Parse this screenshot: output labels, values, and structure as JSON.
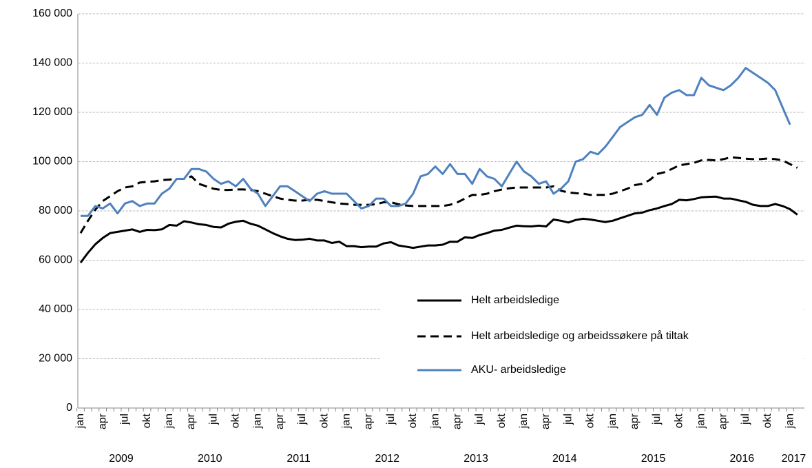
{
  "chart_data": {
    "type": "line",
    "categories": [
      "jan",
      null,
      null,
      "apr",
      null,
      null,
      "jul",
      null,
      null,
      "okt",
      null,
      null,
      "jan",
      null,
      null,
      "apr",
      null,
      null,
      "jul",
      null,
      null,
      "okt",
      null,
      null,
      "jan",
      null,
      null,
      "apr",
      null,
      null,
      "jul",
      null,
      null,
      "okt",
      null,
      null,
      "jan",
      null,
      null,
      "apr",
      null,
      null,
      "jul",
      null,
      null,
      "okt",
      null,
      null,
      "jan",
      null,
      null,
      "apr",
      null,
      null,
      "jul",
      null,
      null,
      "okt",
      null,
      null,
      "jan",
      null,
      null,
      "apr",
      null,
      null,
      "jul",
      null,
      null,
      "okt",
      null,
      null,
      "jan",
      null,
      null,
      "apr",
      null,
      null,
      "jul",
      null,
      null,
      "okt",
      null,
      null,
      "jan",
      null,
      null,
      "apr",
      null,
      null,
      "jul",
      null,
      null,
      "okt",
      null,
      null,
      "jan",
      null
    ],
    "year_labels": [
      "2009",
      "2010",
      "2011",
      "2012",
      "2013",
      "2014",
      "2015",
      "2016",
      "2017"
    ],
    "ylim": [
      0,
      160000
    ],
    "yticks": [
      {
        "value": 0,
        "label": "0"
      },
      {
        "value": 20000,
        "label": "20 000"
      },
      {
        "value": 40000,
        "label": "40 000"
      },
      {
        "value": 60000,
        "label": "60 000"
      },
      {
        "value": 80000,
        "label": "80 000"
      },
      {
        "value": 100000,
        "label": "100 000"
      },
      {
        "value": 120000,
        "label": "120 000"
      },
      {
        "value": 140000,
        "label": "140 000"
      },
      {
        "value": 160000,
        "label": "160 000"
      }
    ],
    "grid": true,
    "series": [
      {
        "name": "Helt arbeidsledige",
        "color": "#000000",
        "dash": false,
        "values": [
          59000,
          63000,
          66500,
          69000,
          71000,
          71500,
          72000,
          72500,
          71500,
          72300,
          72200,
          72500,
          74300,
          74000,
          75800,
          75300,
          74600,
          74300,
          73500,
          73300,
          74800,
          75600,
          76000,
          74800,
          74000,
          72500,
          71000,
          69700,
          68700,
          68200,
          68300,
          68700,
          68000,
          68000,
          67000,
          67500,
          65700,
          65700,
          65300,
          65500,
          65500,
          66800,
          67300,
          66000,
          65500,
          65000,
          65500,
          66000,
          66000,
          66300,
          67500,
          67500,
          69300,
          69000,
          70200,
          71000,
          72000,
          72300,
          73200,
          74000,
          73800,
          73700,
          74000,
          73700,
          76500,
          76000,
          75300,
          76300,
          76800,
          76500,
          76000,
          75500,
          76000,
          77000,
          78000,
          79000,
          79300,
          80300,
          81000,
          82000,
          82800,
          84500,
          84300,
          84800,
          85500,
          85700,
          85800,
          85000,
          85000,
          84300,
          83700,
          82500,
          82000,
          82000,
          82800,
          82000,
          80700,
          78500
        ]
      },
      {
        "name": "Helt arbeidsledige og arbeidssøkere på tiltak",
        "color": "#000000",
        "dash": true,
        "values": [
          71000,
          76000,
          80500,
          84000,
          86000,
          88000,
          89500,
          90000,
          91500,
          91800,
          92000,
          92500,
          92700,
          93000,
          93000,
          94000,
          91000,
          90000,
          89000,
          88500,
          88500,
          88700,
          88700,
          88500,
          88000,
          87000,
          86000,
          85000,
          84500,
          84200,
          84200,
          84500,
          84500,
          84000,
          83500,
          83000,
          82800,
          82500,
          82500,
          82500,
          82700,
          83500,
          83500,
          82700,
          82200,
          82000,
          82000,
          82000,
          82000,
          82000,
          82500,
          83500,
          85000,
          86500,
          86500,
          87000,
          88000,
          88700,
          89200,
          89500,
          89500,
          89500,
          89500,
          89500,
          90000,
          88200,
          87500,
          87200,
          87000,
          86500,
          86500,
          86500,
          87000,
          88000,
          89000,
          90500,
          91000,
          92500,
          95000,
          95700,
          97000,
          98500,
          99000,
          99500,
          100500,
          100700,
          100500,
          101000,
          101800,
          101500,
          101200,
          101000,
          101000,
          101300,
          101000,
          100500,
          99000,
          97500
        ]
      },
      {
        "name": "AKU- arbeidsledige",
        "color": "#4f81bd",
        "dash": false,
        "values": [
          78000,
          78000,
          82000,
          81000,
          83000,
          79000,
          83000,
          84000,
          82000,
          83000,
          83000,
          87000,
          89000,
          93000,
          93000,
          97000,
          97000,
          96000,
          93000,
          91000,
          92000,
          90000,
          93000,
          89000,
          87000,
          82000,
          86000,
          90000,
          90000,
          88000,
          86000,
          84000,
          87000,
          88000,
          87000,
          87000,
          87000,
          84000,
          81000,
          82000,
          85000,
          85000,
          82000,
          82000,
          83000,
          87000,
          94000,
          95000,
          98000,
          95000,
          99000,
          95000,
          95000,
          91000,
          97000,
          94000,
          93000,
          90000,
          95000,
          100000,
          96000,
          94000,
          91000,
          92000,
          87000,
          89000,
          92000,
          100000,
          101000,
          104000,
          103000,
          106000,
          110000,
          114000,
          116000,
          118000,
          119000,
          123000,
          119000,
          126000,
          128000,
          129000,
          127000,
          127000,
          134000,
          131000,
          130000,
          129000,
          131000,
          134000,
          138000,
          136000,
          134000,
          132000,
          129000,
          122000,
          115000,
          null
        ]
      }
    ]
  }
}
